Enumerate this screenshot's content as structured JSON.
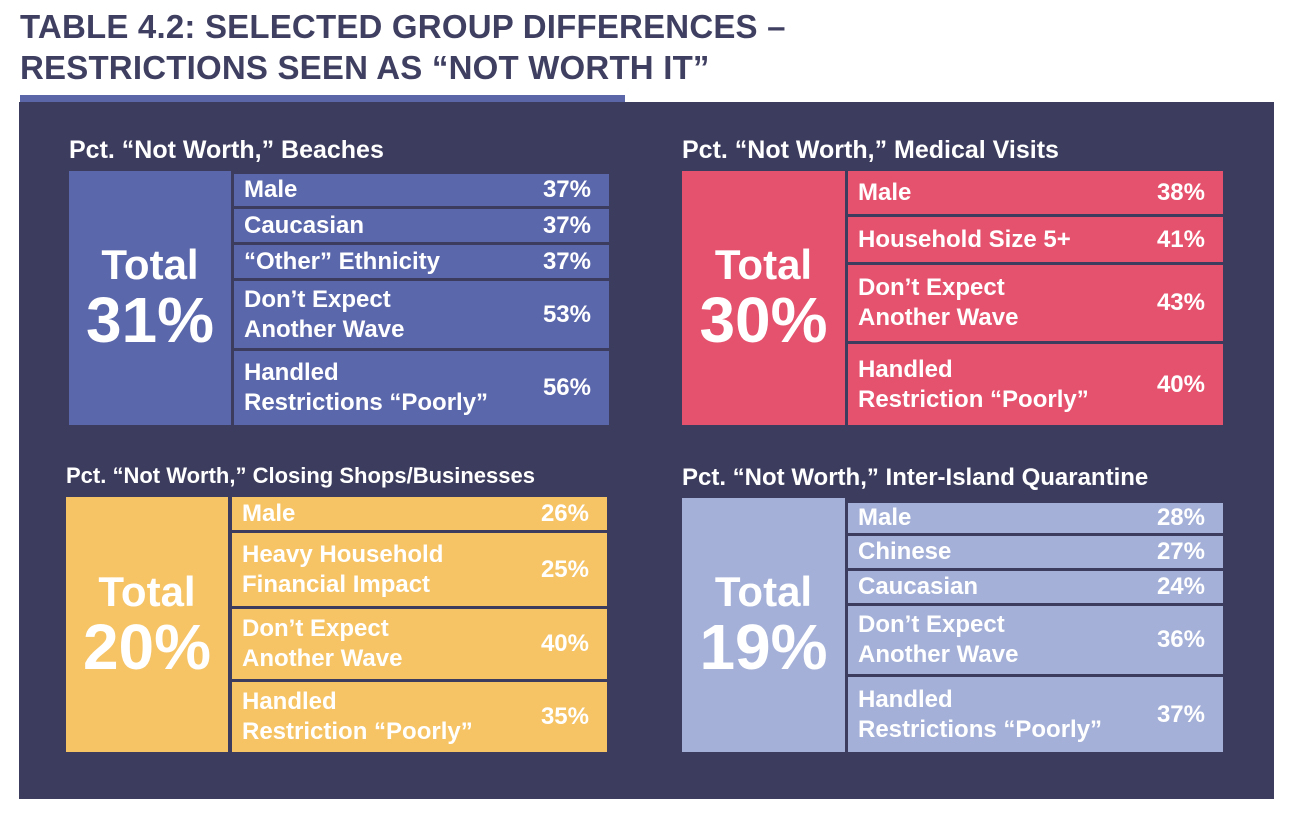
{
  "title": "TABLE 4.2: SELECTED GROUP DIFFERENCES –\nRESTRICTIONS SEEN AS “NOT WORTH IT”",
  "colors": {
    "beaches": "#5b67ab",
    "medical": "#e5526d",
    "shops": "#f6c465",
    "quarantine": "#a4b0d8",
    "panel": "#3c3c5e",
    "title": "#3f3f62"
  },
  "chart_data": [
    {
      "type": "table",
      "title": "Pct. “Not Worth,” Beaches",
      "total_label": "Total",
      "total": "31%",
      "rows": [
        {
          "label": "Male",
          "value": "37%"
        },
        {
          "label": "Caucasian",
          "value": "37%"
        },
        {
          "label": "“Other” Ethnicity",
          "value": "37%"
        },
        {
          "label": "Don’t Expect\nAnother Wave",
          "value": "53%"
        },
        {
          "label": "Handled\nRestrictions “Poorly”",
          "value": "56%"
        }
      ]
    },
    {
      "type": "table",
      "title": "Pct. “Not Worth,” Medical Visits",
      "total_label": "Total",
      "total": "30%",
      "rows": [
        {
          "label": "Male",
          "value": "38%"
        },
        {
          "label": "Household Size 5+",
          "value": "41%"
        },
        {
          "label": "Don’t Expect\nAnother Wave",
          "value": "43%"
        },
        {
          "label": "Handled\nRestriction “Poorly”",
          "value": "40%"
        }
      ]
    },
    {
      "type": "table",
      "title": "Pct. “Not Worth,” Closing Shops/Businesses",
      "total_label": "Total",
      "total": "20%",
      "rows": [
        {
          "label": "Male",
          "value": "26%"
        },
        {
          "label": "Heavy Household\nFinancial Impact",
          "value": "25%"
        },
        {
          "label": "Don’t Expect\nAnother Wave",
          "value": "40%"
        },
        {
          "label": "Handled\nRestriction “Poorly”",
          "value": "35%"
        }
      ]
    },
    {
      "type": "table",
      "title": "Pct. “Not Worth,” Inter-Island Quarantine",
      "total_label": "Total",
      "total": "19%",
      "rows": [
        {
          "label": "Male",
          "value": "28%"
        },
        {
          "label": "Chinese",
          "value": "27%"
        },
        {
          "label": "Caucasian",
          "value": "24%"
        },
        {
          "label": "Don’t Expect\nAnother Wave",
          "value": "36%"
        },
        {
          "label": "Handled\nRestrictions “Poorly”",
          "value": "37%"
        }
      ]
    }
  ]
}
